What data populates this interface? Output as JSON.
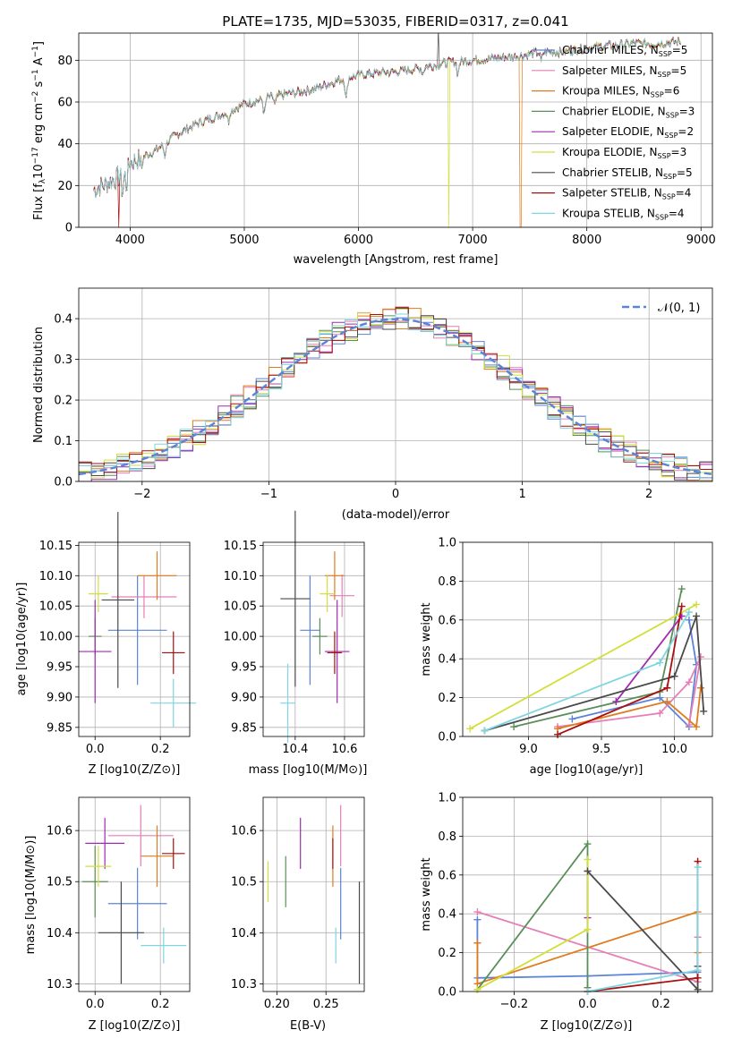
{
  "colors": [
    "#5b84d8",
    "#e67fb7",
    "#e07b1f",
    "#5a8f5a",
    "#a02ab0",
    "#d2df3a",
    "#4a4a4a",
    "#a80f0f",
    "#7fd6e0"
  ],
  "chart_data": [
    {
      "id": "spectrum",
      "type": "line",
      "title": "PLATE=1735, MJD=53035, FIBERID=0317, z=0.041",
      "xlabel": "wavelength [Angstrom, rest frame]",
      "ylabel_main": "Flux [f",
      "ylabel_sub": "λ",
      "ylabel_rest": "10",
      "ylabel_exp1": "−17",
      "ylabel_mid": " erg cm",
      "ylabel_exp2": "−2",
      "ylabel_s": " s",
      "ylabel_exp3": "−1",
      "ylabel_a": " A",
      "ylabel_exp4": "−1",
      "ylabel_end": "]",
      "xlim": [
        3550,
        9100
      ],
      "ylim": [
        0,
        93
      ],
      "xticks": [
        "4000",
        "5000",
        "6000",
        "7000",
        "8000",
        "9000"
      ],
      "yticks": [
        "0",
        "20",
        "40",
        "60",
        "80"
      ],
      "legend_position": "top-right",
      "series": [
        {
          "name": "Chabrier MILES, N",
          "sub": "SSP",
          "tail": "=5"
        },
        {
          "name": "Salpeter MILES, N",
          "sub": "SSP",
          "tail": "=5"
        },
        {
          "name": "Kroupa MILES, N",
          "sub": "SSP",
          "tail": "=6"
        },
        {
          "name": "Chabrier ELODIE, N",
          "sub": "SSP",
          "tail": "=3"
        },
        {
          "name": "Salpeter ELODIE, N",
          "sub": "SSP",
          "tail": "=2"
        },
        {
          "name": "Kroupa ELODIE, N",
          "sub": "SSP",
          "tail": "=3"
        },
        {
          "name": "Chabrier STELIB, N",
          "sub": "SSP",
          "tail": "=5"
        },
        {
          "name": "Salpeter STELIB, N",
          "sub": "SSP",
          "tail": "=4"
        },
        {
          "name": "Kroupa STELIB, N",
          "sub": "SSP",
          "tail": "=4"
        }
      ],
      "continuum": [
        [
          3680,
          18
        ],
        [
          3900,
          24
        ],
        [
          4000,
          31
        ],
        [
          4200,
          36
        ],
        [
          4400,
          44
        ],
        [
          4600,
          50
        ],
        [
          4800,
          54
        ],
        [
          5000,
          59
        ],
        [
          5200,
          62
        ],
        [
          5400,
          64
        ],
        [
          5600,
          66
        ],
        [
          5800,
          70
        ],
        [
          6000,
          73
        ],
        [
          6200,
          74
        ],
        [
          6400,
          75
        ],
        [
          6600,
          77
        ],
        [
          6800,
          79
        ],
        [
          7000,
          80
        ],
        [
          7200,
          81
        ],
        [
          7400,
          82
        ],
        [
          7600,
          84
        ],
        [
          7800,
          84
        ],
        [
          8000,
          86
        ],
        [
          8200,
          87
        ],
        [
          8400,
          88
        ],
        [
          8600,
          88
        ],
        [
          8820,
          89
        ]
      ]
    },
    {
      "id": "residuals",
      "type": "bar",
      "xlabel": "(data-model)/error",
      "ylabel": "Normed distribution",
      "xlim": [
        -2.5,
        2.5
      ],
      "ylim": [
        0,
        0.475
      ],
      "xticks": [
        "−2",
        "−1",
        "0",
        "1",
        "2"
      ],
      "yticks": [
        "0.0",
        "0.1",
        "0.2",
        "0.3",
        "0.4"
      ],
      "reference_label": "𝒩(0, 1)",
      "legend_position": "top-right"
    },
    {
      "id": "age-vs-Z",
      "type": "scatter",
      "xlabel": "Z [log10(Z/Z⊙)]",
      "ylabel": "age  [log10(age/yr)]",
      "xlim": [
        -0.05,
        0.29
      ],
      "ylim": [
        9.835,
        10.155
      ],
      "xticks": [
        "0.0",
        "0.2"
      ],
      "yticks": [
        "9.85",
        "9.90",
        "9.95",
        "10.00",
        "10.05",
        "10.10",
        "10.15"
      ],
      "points": [
        {
          "x": 0.13,
          "y": 10.01,
          "xerr": 0.09,
          "yerr": 0.09
        },
        {
          "x": 0.15,
          "y": 10.065,
          "xerr": 0.1,
          "yerr": 0.035
        },
        {
          "x": 0.19,
          "y": 10.1,
          "xerr": 0.06,
          "yerr": 0.04
        },
        {
          "x": 0.0,
          "y": 10.0,
          "xerr": 0.02,
          "yerr": 0.03
        },
        {
          "x": 0.0,
          "y": 9.975,
          "xerr": 0.05,
          "yerr": 0.085
        },
        {
          "x": 0.01,
          "y": 10.07,
          "xerr": 0.03,
          "yerr": 0.03
        },
        {
          "x": 0.07,
          "y": 10.06,
          "xerr": 0.05,
          "yerr": 0.145
        },
        {
          "x": 0.24,
          "y": 9.973,
          "xerr": 0.035,
          "yerr": 0.035
        },
        {
          "x": 0.24,
          "y": 9.89,
          "xerr": 0.07,
          "yerr": 0.04
        }
      ]
    },
    {
      "id": "age-vs-mass",
      "type": "scatter",
      "xlabel": "mass [log10(M/M⊙)]",
      "xlim": [
        10.27,
        10.68
      ],
      "ylim": [
        9.835,
        10.155
      ],
      "xticks": [
        "10.4",
        "10.6"
      ],
      "yticks": [
        "9.85",
        "9.90",
        "9.95",
        "10.00",
        "10.05",
        "10.10",
        "10.15"
      ],
      "points": [
        {
          "x": 10.46,
          "y": 10.01,
          "xerr": 0.04,
          "yerr": 0.09
        },
        {
          "x": 10.59,
          "y": 10.067,
          "xerr": 0.05,
          "yerr": 0.035
        },
        {
          "x": 10.56,
          "y": 10.1,
          "xerr": 0.04,
          "yerr": 0.04
        },
        {
          "x": 10.5,
          "y": 10.0,
          "xerr": 0.03,
          "yerr": 0.03
        },
        {
          "x": 10.57,
          "y": 9.975,
          "xerr": 0.05,
          "yerr": 0.085
        },
        {
          "x": 10.53,
          "y": 10.07,
          "xerr": 0.03,
          "yerr": 0.03
        },
        {
          "x": 10.4,
          "y": 10.062,
          "xerr": 0.06,
          "yerr": 0.145
        },
        {
          "x": 10.56,
          "y": 9.973,
          "xerr": 0.03,
          "yerr": 0.035
        },
        {
          "x": 10.37,
          "y": 9.89,
          "xerr": 0.03,
          "yerr": 0.065
        }
      ]
    },
    {
      "id": "massweight-vs-age",
      "type": "line",
      "xlabel": "age  [log10(age/yr)]",
      "ylabel": "mass weight",
      "xlim": [
        8.55,
        10.26
      ],
      "ylim": [
        0,
        1.0
      ],
      "xticks": [
        "9.0",
        "9.5",
        "10.0"
      ],
      "yticks": [
        "0.0",
        "0.2",
        "0.4",
        "0.6",
        "0.8",
        "1.0"
      ],
      "series": [
        {
          "x": [
            9.3,
            9.9,
            10.1,
            10.15,
            10.1
          ],
          "y": [
            0.09,
            0.2,
            0.05,
            0.37,
            0.6
          ]
        },
        {
          "x": [
            9.2,
            9.9,
            10.1,
            10.18,
            10.1
          ],
          "y": [
            0.05,
            0.12,
            0.28,
            0.41,
            0.06
          ]
        },
        {
          "x": [
            9.2,
            9.95,
            10.15,
            10.18
          ],
          "y": [
            0.04,
            0.18,
            0.05,
            0.25
          ]
        },
        {
          "x": [
            8.9,
            9.9,
            10.05
          ],
          "y": [
            0.05,
            0.23,
            0.76
          ]
        },
        {
          "x": [
            9.6,
            10.05
          ],
          "y": [
            0.18,
            0.62
          ]
        },
        {
          "x": [
            8.6,
            10.15
          ],
          "y": [
            0.04,
            0.68
          ]
        },
        {
          "x": [
            8.7,
            10.0,
            10.15,
            10.2
          ],
          "y": [
            0.03,
            0.31,
            0.62,
            0.13
          ]
        },
        {
          "x": [
            9.2,
            9.95,
            10.05
          ],
          "y": [
            0.01,
            0.25,
            0.67
          ]
        },
        {
          "x": [
            8.7,
            9.9,
            10.1
          ],
          "y": [
            0.03,
            0.38,
            0.64
          ]
        }
      ]
    },
    {
      "id": "mass-vs-Z",
      "type": "scatter",
      "xlabel": "Z [log10(Z/Z⊙)]",
      "ylabel": "mass [log10(M/M⊙)]",
      "xlim": [
        -0.05,
        0.29
      ],
      "ylim": [
        10.285,
        10.665
      ],
      "xticks": [
        "0.0",
        "0.2"
      ],
      "yticks": [
        "10.3",
        "10.4",
        "10.5",
        "10.6"
      ],
      "points": [
        {
          "x": 0.13,
          "y": 10.457,
          "xerr": 0.09,
          "yerr": 0.07
        },
        {
          "x": 0.14,
          "y": 10.59,
          "xerr": 0.1,
          "yerr": 0.06
        },
        {
          "x": 0.19,
          "y": 10.55,
          "xerr": 0.05,
          "yerr": 0.06
        },
        {
          "x": 0.0,
          "y": 10.5,
          "xerr": 0.04,
          "yerr": 0.07
        },
        {
          "x": 0.03,
          "y": 10.575,
          "xerr": 0.06,
          "yerr": 0.05
        },
        {
          "x": 0.01,
          "y": 10.53,
          "xerr": 0.04,
          "yerr": 0.04
        },
        {
          "x": 0.08,
          "y": 10.4,
          "xerr": 0.07,
          "yerr": 0.1
        },
        {
          "x": 0.24,
          "y": 10.555,
          "xerr": 0.035,
          "yerr": 0.03
        },
        {
          "x": 0.21,
          "y": 10.375,
          "xerr": 0.07,
          "yerr": 0.035
        }
      ]
    },
    {
      "id": "mass-vs-ebv",
      "type": "scatter",
      "xlabel": "E(B-V)",
      "xlim": [
        0.186,
        0.289
      ],
      "ylim": [
        10.285,
        10.665
      ],
      "xticks": [
        "0.20",
        "0.25"
      ],
      "yticks": [
        "10.3",
        "10.4",
        "10.5",
        "10.6"
      ],
      "points": [
        {
          "x": 0.265,
          "y": 10.457,
          "xerr": 0,
          "yerr": 0.07
        },
        {
          "x": 0.265,
          "y": 10.59,
          "xerr": 0,
          "yerr": 0.06
        },
        {
          "x": 0.257,
          "y": 10.55,
          "xerr": 0,
          "yerr": 0.06
        },
        {
          "x": 0.209,
          "y": 10.5,
          "xerr": 0,
          "yerr": 0.05
        },
        {
          "x": 0.224,
          "y": 10.575,
          "xerr": 0,
          "yerr": 0.05
        },
        {
          "x": 0.191,
          "y": 10.5,
          "xerr": 0,
          "yerr": 0.04
        },
        {
          "x": 0.284,
          "y": 10.4,
          "xerr": 0,
          "yerr": 0.1
        },
        {
          "x": 0.257,
          "y": 10.555,
          "xerr": 0,
          "yerr": 0.03
        },
        {
          "x": 0.26,
          "y": 10.375,
          "xerr": 0,
          "yerr": 0.035
        }
      ]
    },
    {
      "id": "massweight-vs-Z",
      "type": "line",
      "xlabel": "Z [log10(Z/Z⊙)]",
      "ylabel": "mass weight",
      "xlim": [
        -0.34,
        0.34
      ],
      "ylim": [
        0,
        1.0
      ],
      "xticks": [
        "−0.2",
        "0.0",
        "0.2"
      ],
      "yticks": [
        "0.0",
        "0.2",
        "0.4",
        "0.6",
        "0.8",
        "1.0"
      ],
      "series": [
        {
          "x": [
            -0.3,
            -0.3,
            0.0,
            0.3,
            0.3
          ],
          "y": [
            0.37,
            0.07,
            0.08,
            0.1,
            0.05
          ]
        },
        {
          "x": [
            -0.3,
            0.3,
            0.3
          ],
          "y": [
            0.41,
            0.05,
            0.28
          ]
        },
        {
          "x": [
            -0.3,
            -0.3,
            0.3,
            0.3
          ],
          "y": [
            0.25,
            0.04,
            0.41,
            0.2
          ]
        },
        {
          "x": [
            -0.3,
            0.0,
            0.0
          ],
          "y": [
            0.01,
            0.76,
            0.02
          ]
        },
        {
          "x": [
            0.0,
            0.0
          ],
          "y": [
            0.38,
            0.62
          ]
        },
        {
          "x": [
            -0.3,
            0.0,
            0.0
          ],
          "y": [
            0.01,
            0.32,
            0.68
          ]
        },
        {
          "x": [
            0.0,
            0.3,
            0.3
          ],
          "y": [
            0.62,
            0.01,
            0.13
          ]
        },
        {
          "x": [
            0.0,
            0.3,
            0.3
          ],
          "y": [
            0.0,
            0.07,
            0.67
          ]
        },
        {
          "x": [
            0.0,
            0.3,
            0.3
          ],
          "y": [
            0.0,
            0.11,
            0.64
          ]
        }
      ]
    }
  ]
}
